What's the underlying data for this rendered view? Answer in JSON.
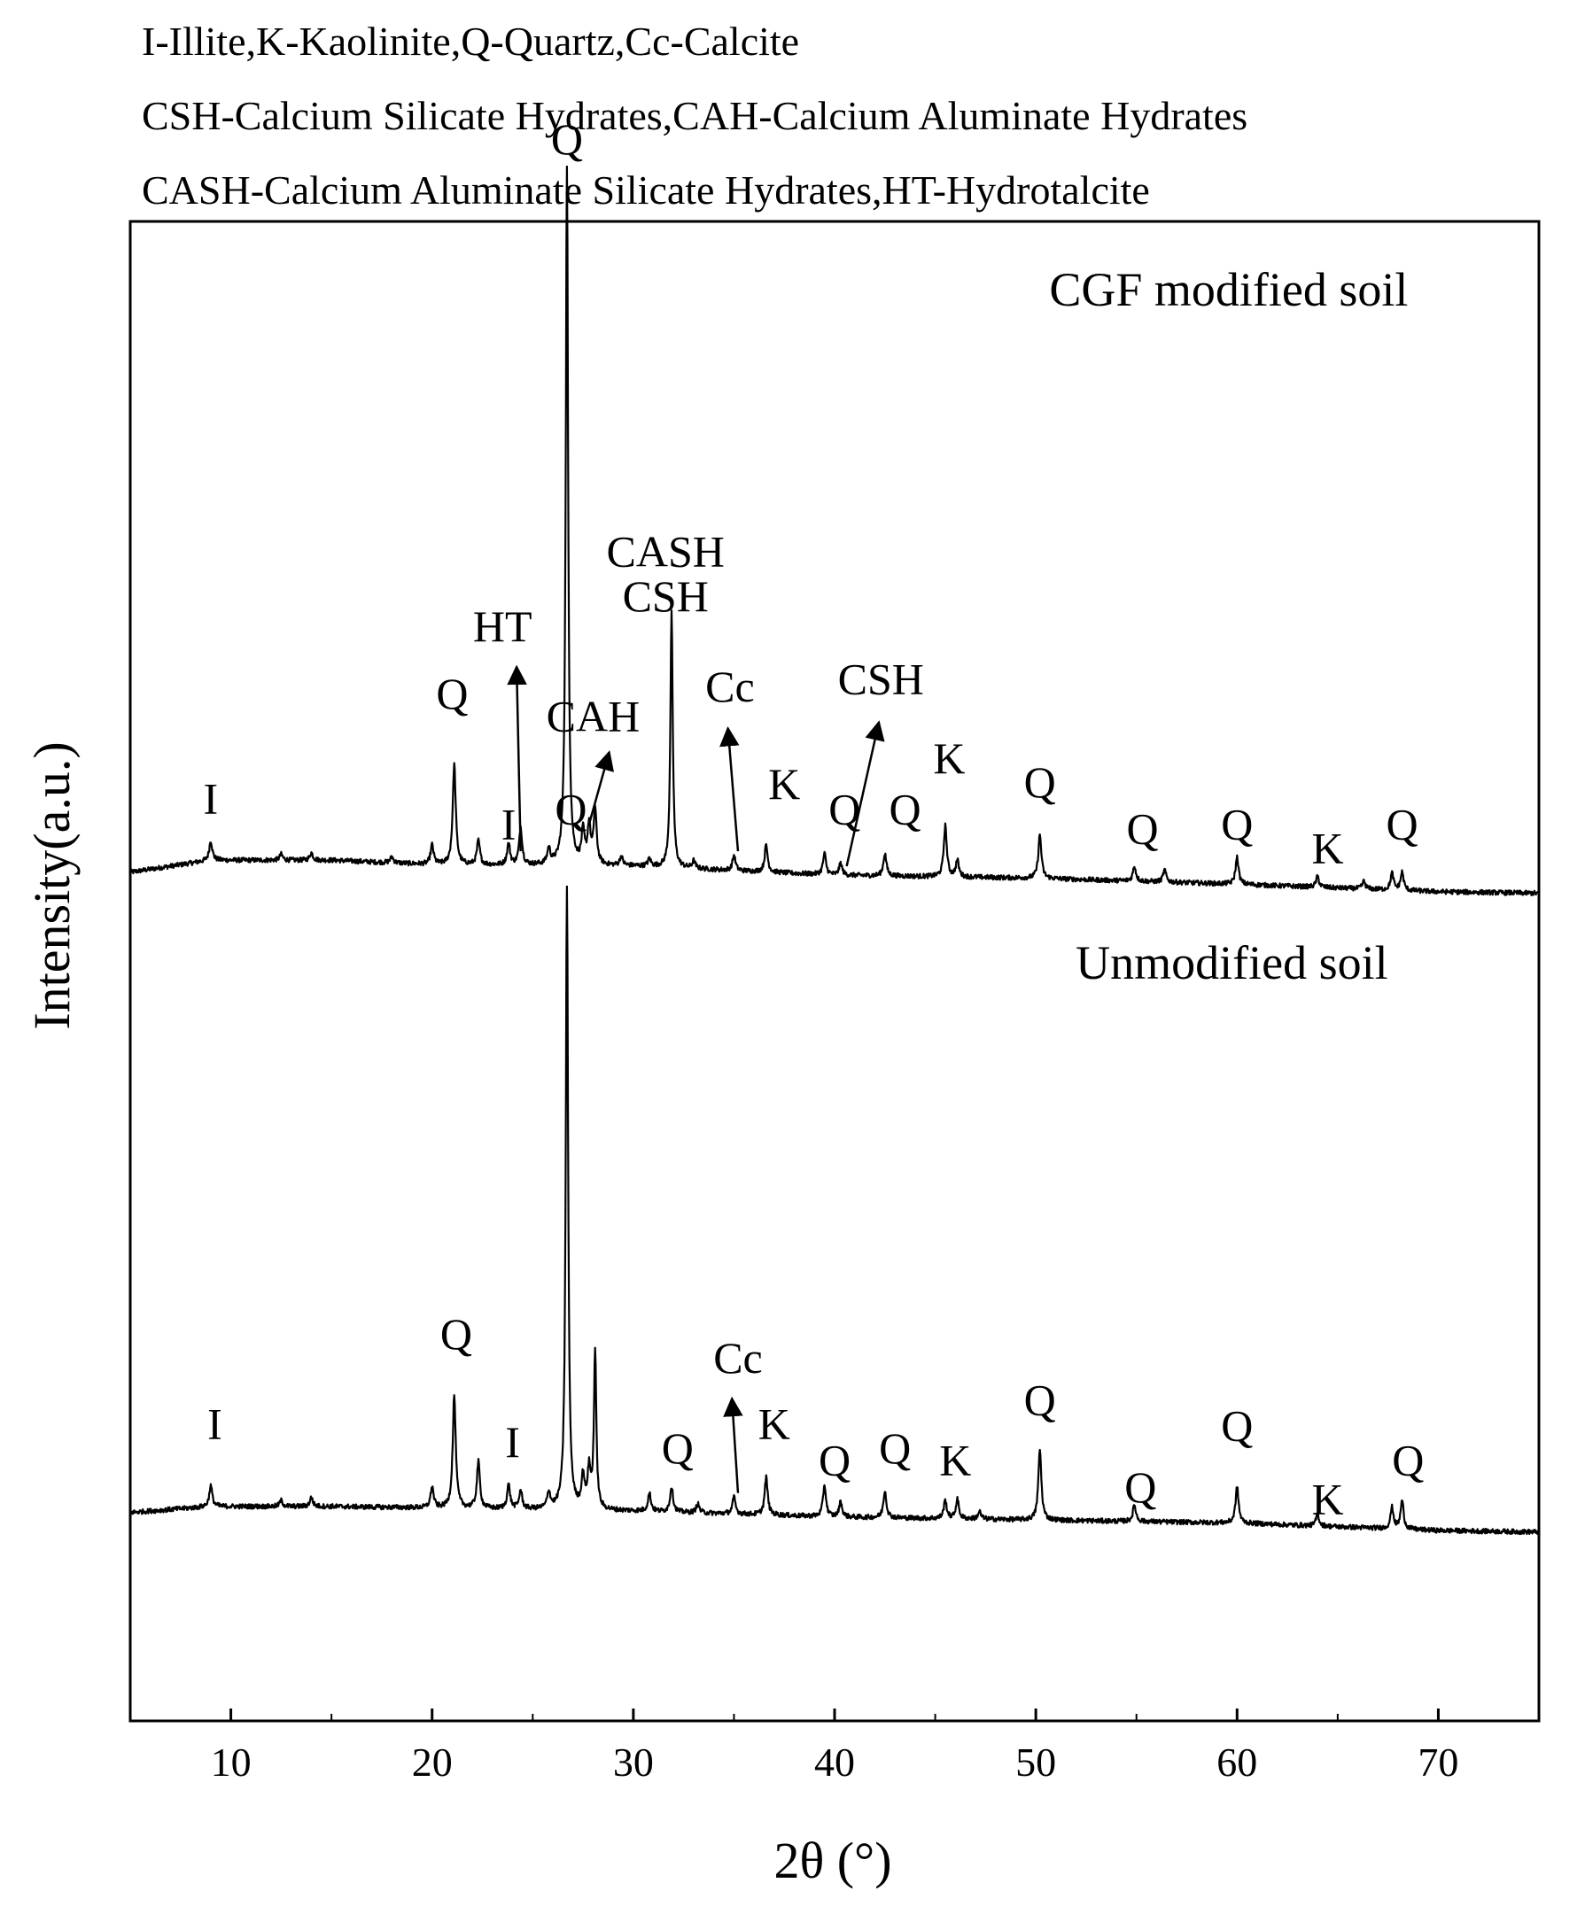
{
  "legend": [
    "I-Illite,K-Kaolinite,Q-Quartz,Cc-Calcite",
    "CSH-Calcium Silicate Hydrates,CAH-Calcium Aluminate Hydrates",
    "CASH-Calcium Aluminate Silicate Hydrates,HT-Hydrotalcite"
  ],
  "chart_data": {
    "type": "line",
    "title": "",
    "xlabel": "2θ (°)",
    "ylabel": "Intensity(a.u.)",
    "xlim": [
      5,
      75
    ],
    "ylim": [
      0,
      100
    ],
    "xticks": [
      10,
      20,
      30,
      40,
      50,
      60,
      70
    ],
    "grid": false,
    "line_color": "#000000",
    "series": [
      {
        "name": "CGF modified soil",
        "baseline": [
          [
            5,
            56.6
          ],
          [
            9,
            57.4
          ],
          [
            15,
            57.4
          ],
          [
            20,
            57.1
          ],
          [
            30,
            57.0
          ],
          [
            40,
            56.4
          ],
          [
            50,
            56.2
          ],
          [
            60,
            55.8
          ],
          [
            70,
            55.3
          ],
          [
            75,
            55.2
          ]
        ],
        "peaks": [
          [
            9.0,
            1.3
          ],
          [
            12.5,
            0.4
          ],
          [
            14.0,
            0.5
          ],
          [
            18.0,
            0.4
          ],
          [
            20.0,
            1.3
          ],
          [
            21.1,
            6.7
          ],
          [
            22.3,
            1.6
          ],
          [
            23.8,
            1.4
          ],
          [
            24.4,
            2.5
          ],
          [
            25.8,
            1.0
          ],
          [
            26.7,
            46.5
          ],
          [
            27.5,
            2.1
          ],
          [
            27.8,
            2.5
          ],
          [
            28.1,
            3.6
          ],
          [
            29.4,
            0.6
          ],
          [
            30.8,
            0.5
          ],
          [
            31.9,
            17.0
          ],
          [
            33.0,
            0.5
          ],
          [
            35.0,
            1.0
          ],
          [
            36.6,
            1.8
          ],
          [
            39.5,
            1.4
          ],
          [
            40.3,
            0.8
          ],
          [
            42.5,
            1.5
          ],
          [
            45.5,
            3.4
          ],
          [
            46.1,
            1.1
          ],
          [
            50.2,
            2.9
          ],
          [
            54.9,
            1.0
          ],
          [
            56.4,
            0.8
          ],
          [
            60.0,
            1.8
          ],
          [
            64.0,
            0.7
          ],
          [
            66.3,
            0.5
          ],
          [
            67.7,
            1.1
          ],
          [
            68.2,
            1.2
          ]
        ]
      },
      {
        "name": "Unmodified soil",
        "baseline": [
          [
            5,
            13.9
          ],
          [
            9,
            14.3
          ],
          [
            15,
            14.3
          ],
          [
            20,
            14.2
          ],
          [
            30,
            14.0
          ],
          [
            40,
            13.6
          ],
          [
            50,
            13.4
          ],
          [
            60,
            13.2
          ],
          [
            70,
            12.7
          ],
          [
            75,
            12.6
          ]
        ],
        "peaks": [
          [
            9.0,
            1.4
          ],
          [
            12.5,
            0.4
          ],
          [
            14.0,
            0.6
          ],
          [
            20.0,
            1.4
          ],
          [
            21.1,
            7.5
          ],
          [
            22.3,
            3.1
          ],
          [
            23.8,
            1.6
          ],
          [
            24.4,
            1.2
          ],
          [
            25.8,
            1.1
          ],
          [
            26.7,
            41.5
          ],
          [
            27.5,
            2.1
          ],
          [
            27.8,
            2.5
          ],
          [
            28.1,
            10.5
          ],
          [
            30.8,
            1.2
          ],
          [
            31.9,
            1.7
          ],
          [
            33.2,
            0.6
          ],
          [
            35.0,
            1.1
          ],
          [
            36.6,
            2.5
          ],
          [
            39.5,
            2.1
          ],
          [
            40.3,
            1.0
          ],
          [
            42.5,
            1.8
          ],
          [
            45.5,
            1.2
          ],
          [
            46.1,
            1.3
          ],
          [
            47.2,
            0.5
          ],
          [
            50.2,
            4.7
          ],
          [
            54.9,
            1.1
          ],
          [
            60.0,
            2.4
          ],
          [
            64.0,
            0.8
          ],
          [
            67.7,
            1.4
          ],
          [
            68.2,
            1.9
          ]
        ]
      }
    ],
    "panel_labels": [
      {
        "text": "CGF modified soil",
        "x": 68.5,
        "y": 94.4
      },
      {
        "text": "Unmodified soil",
        "x": 67.5,
        "y": 49.5
      }
    ],
    "annotations": [
      {
        "text": "Q",
        "x": 26.7,
        "y": 104.5
      },
      {
        "text": "CASH",
        "x": 31.6,
        "y": 77.0
      },
      {
        "text": "CSH",
        "x": 31.6,
        "y": 74.0
      },
      {
        "text": "HT",
        "x": 23.5,
        "y": 72.0
      },
      {
        "text": "Q",
        "x": 21.0,
        "y": 67.5
      },
      {
        "text": "CAH",
        "x": 28.0,
        "y": 66.0
      },
      {
        "text": "Cc",
        "x": 34.8,
        "y": 68.0
      },
      {
        "text": "CSH",
        "x": 42.3,
        "y": 68.5
      },
      {
        "text": "I",
        "x": 9.0,
        "y": 60.5
      },
      {
        "text": "I",
        "x": 23.8,
        "y": 58.8
      },
      {
        "text": "K",
        "x": 37.5,
        "y": 61.5
      },
      {
        "text": "Q",
        "x": 40.5,
        "y": 59.8
      },
      {
        "text": "Q",
        "x": 43.5,
        "y": 59.8
      },
      {
        "text": "K",
        "x": 45.7,
        "y": 63.2
      },
      {
        "text": "Q",
        "x": 50.2,
        "y": 61.6
      },
      {
        "text": "Q",
        "x": 55.3,
        "y": 58.5
      },
      {
        "text": "Q",
        "x": 60.0,
        "y": 58.8
      },
      {
        "text": "K",
        "x": 64.5,
        "y": 57.2
      },
      {
        "text": "Q",
        "x": 68.2,
        "y": 58.8
      },
      {
        "text": "Q",
        "x": 26.9,
        "y": 59.8
      },
      {
        "text": "Q",
        "x": 21.2,
        "y": 24.8
      },
      {
        "text": "Cc",
        "x": 35.2,
        "y": 23.2
      },
      {
        "text": "I",
        "x": 9.2,
        "y": 18.8
      },
      {
        "text": "I",
        "x": 24.0,
        "y": 17.6
      },
      {
        "text": "Q",
        "x": 32.2,
        "y": 17.2
      },
      {
        "text": "K",
        "x": 37.0,
        "y": 18.8
      },
      {
        "text": "Q",
        "x": 40.0,
        "y": 16.4
      },
      {
        "text": "Q",
        "x": 43.0,
        "y": 17.2
      },
      {
        "text": "K",
        "x": 46.0,
        "y": 16.4
      },
      {
        "text": "Q",
        "x": 50.2,
        "y": 20.4
      },
      {
        "text": "Q",
        "x": 55.2,
        "y": 14.6
      },
      {
        "text": "Q",
        "x": 60.0,
        "y": 18.7
      },
      {
        "text": "K",
        "x": 64.5,
        "y": 13.8
      },
      {
        "text": "Q",
        "x": 68.5,
        "y": 16.4
      }
    ],
    "arrows": [
      {
        "label": "HT",
        "from": [
          24.4,
          58.0
        ],
        "to": [
          24.2,
          70.3
        ]
      },
      {
        "label": "CAH",
        "from": [
          27.8,
          59.8
        ],
        "to": [
          28.8,
          64.6
        ]
      },
      {
        "label": "Cc",
        "from": [
          35.2,
          58.0
        ],
        "to": [
          34.7,
          66.2
        ]
      },
      {
        "label": "CSH",
        "from": [
          40.6,
          57.0
        ],
        "to": [
          42.2,
          66.6
        ]
      },
      {
        "label": "Cc",
        "from": [
          35.2,
          15.2
        ],
        "to": [
          34.9,
          21.5
        ]
      }
    ]
  }
}
